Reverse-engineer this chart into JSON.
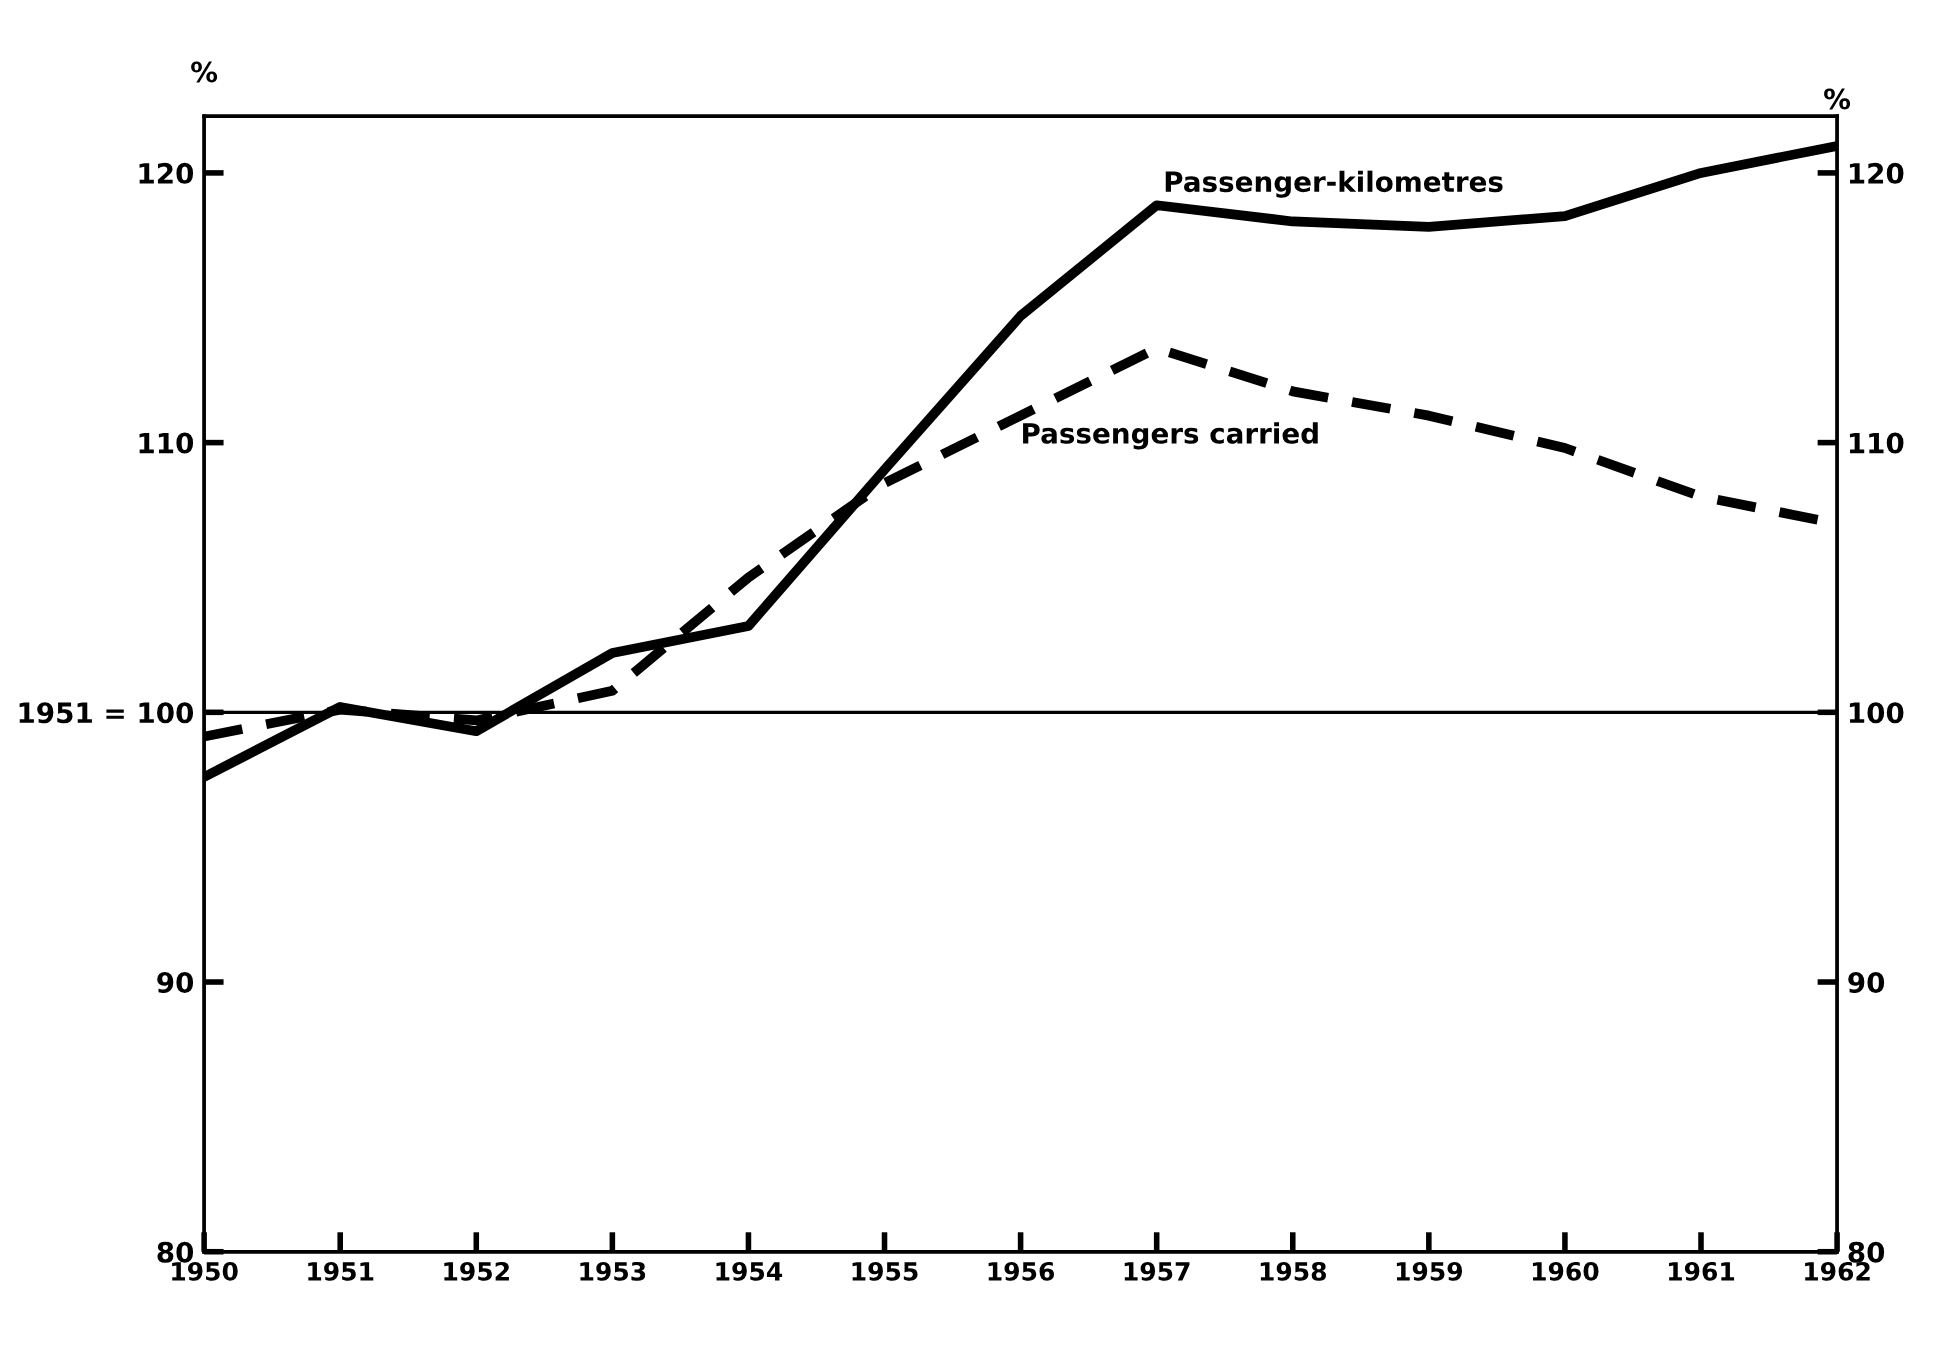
{
  "chart_data": {
    "type": "line",
    "x": [
      1950,
      1951,
      1952,
      1953,
      1954,
      1955,
      1956,
      1957,
      1958,
      1959,
      1960,
      1961,
      1962
    ],
    "xlim": [
      1950,
      1962
    ],
    "xticks": [
      1950,
      1951,
      1952,
      1953,
      1954,
      1955,
      1956,
      1957,
      1958,
      1959,
      1960,
      1961,
      1962
    ],
    "ylim": [
      80,
      122.1
    ],
    "yticks": [
      80,
      90,
      {
        "value": 100,
        "label": "1951 = 100"
      },
      110,
      120
    ],
    "y2lim": [
      80,
      122.1
    ],
    "y2ticks": [
      80,
      90,
      100,
      110,
      120
    ],
    "ylabel": "%",
    "y2label": "%",
    "legend": false,
    "grid": false,
    "ref_lines": [
      {
        "axis": "y",
        "value": 100,
        "color": "#000000",
        "line_style": "solid"
      }
    ],
    "series": [
      {
        "name": "Passenger-kilometres",
        "color": "#000000",
        "line_style": "solid",
        "values": [
          97.6,
          100.2,
          99.3,
          102.2,
          103.2,
          109.0,
          114.7,
          118.8,
          118.2,
          118.0,
          118.4,
          120.0,
          121.0
        ]
      },
      {
        "name": "Passengers carried",
        "color": "#000000",
        "line_style": "dashed",
        "values": [
          99.1,
          100.1,
          99.7,
          100.8,
          105.0,
          108.5,
          111.0,
          113.5,
          111.9,
          111.0,
          109.8,
          108.0,
          107.0
        ]
      }
    ]
  }
}
